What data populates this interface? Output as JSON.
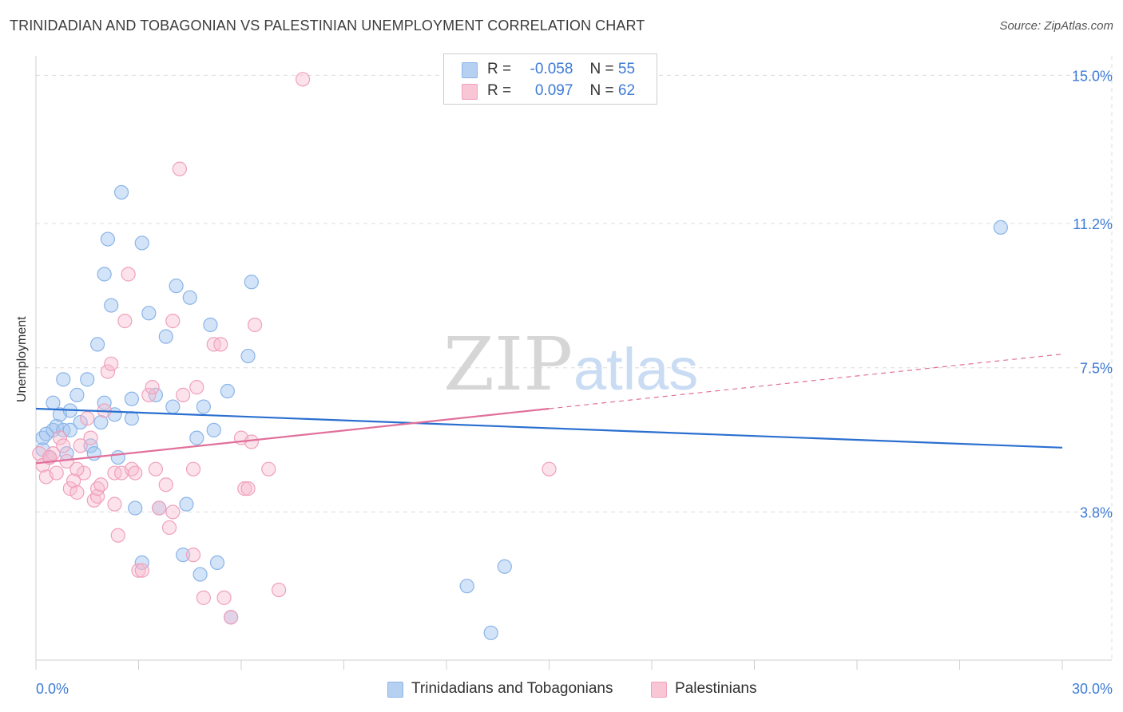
{
  "title": "TRINIDADIAN AND TOBAGONIAN VS PALESTINIAN UNEMPLOYMENT CORRELATION CHART",
  "source": "Source: ZipAtlas.com",
  "watermark": {
    "zip": "ZIP",
    "atlas": "atlas"
  },
  "legend": {
    "r_label": "R =",
    "n_label": "N =",
    "series": [
      {
        "r": "-0.058",
        "n": "55"
      },
      {
        "r": "0.097",
        "n": "62"
      }
    ]
  },
  "chart_data": {
    "type": "scatter",
    "title": "TRINIDADIAN AND TOBAGONIAN VS PALESTINIAN UNEMPLOYMENT CORRELATION CHART",
    "ylabel": "Unemployment",
    "xlabel": "",
    "xlim": [
      0,
      30
    ],
    "ylim": [
      0,
      15.5
    ],
    "x_tick_labels": [
      {
        "value": 0,
        "label": "0.0%"
      },
      {
        "value": 30,
        "label": "30.0%"
      }
    ],
    "y_tick_labels": [
      {
        "value": 3.8,
        "label": "3.8%"
      },
      {
        "value": 7.5,
        "label": "7.5%"
      },
      {
        "value": 11.2,
        "label": "11.2%"
      },
      {
        "value": 15.0,
        "label": "15.0%"
      }
    ],
    "x_minor_ticks": [
      0,
      3,
      6,
      9,
      12,
      15,
      18,
      21,
      24,
      27,
      30
    ],
    "series": [
      {
        "name": "Trinidadians and Tobagonians",
        "color": "#8ab4e8",
        "fill": "rgba(160,196,240,0.45)",
        "line_color": "#2a6fd0",
        "trend": {
          "x0": 0,
          "y0": 6.45,
          "x1": 30,
          "y1": 5.45,
          "dashed_from": null
        },
        "points": [
          [
            0.2,
            5.4
          ],
          [
            0.2,
            5.7
          ],
          [
            0.3,
            5.8
          ],
          [
            0.4,
            5.2
          ],
          [
            0.5,
            5.9
          ],
          [
            0.5,
            6.6
          ],
          [
            0.6,
            6.0
          ],
          [
            0.7,
            6.3
          ],
          [
            0.8,
            5.9
          ],
          [
            0.8,
            7.2
          ],
          [
            0.9,
            5.3
          ],
          [
            1.0,
            6.4
          ],
          [
            1.0,
            5.9
          ],
          [
            1.2,
            6.8
          ],
          [
            1.3,
            6.1
          ],
          [
            1.5,
            7.2
          ],
          [
            1.6,
            5.5
          ],
          [
            1.7,
            5.3
          ],
          [
            1.8,
            8.1
          ],
          [
            1.9,
            6.1
          ],
          [
            2.0,
            6.6
          ],
          [
            2.0,
            9.9
          ],
          [
            2.1,
            10.8
          ],
          [
            2.2,
            9.1
          ],
          [
            2.3,
            6.3
          ],
          [
            2.4,
            5.2
          ],
          [
            2.5,
            12.0
          ],
          [
            2.8,
            6.7
          ],
          [
            2.8,
            6.2
          ],
          [
            2.9,
            3.9
          ],
          [
            3.1,
            2.5
          ],
          [
            3.1,
            10.7
          ],
          [
            3.3,
            8.9
          ],
          [
            3.5,
            6.8
          ],
          [
            3.6,
            3.9
          ],
          [
            3.8,
            8.3
          ],
          [
            4.0,
            6.5
          ],
          [
            4.1,
            9.6
          ],
          [
            4.3,
            2.7
          ],
          [
            4.4,
            4.0
          ],
          [
            4.5,
            9.3
          ],
          [
            4.7,
            5.7
          ],
          [
            4.8,
            2.2
          ],
          [
            4.9,
            6.5
          ],
          [
            5.1,
            8.6
          ],
          [
            5.2,
            5.9
          ],
          [
            5.3,
            2.5
          ],
          [
            5.6,
            6.9
          ],
          [
            5.7,
            1.1
          ],
          [
            6.2,
            7.8
          ],
          [
            6.3,
            9.7
          ],
          [
            12.6,
            1.9
          ],
          [
            13.3,
            0.7
          ],
          [
            13.7,
            2.4
          ],
          [
            28.2,
            11.1
          ]
        ]
      },
      {
        "name": "Palestinians",
        "color": "#f0a0bc",
        "fill": "rgba(248,184,206,0.40)",
        "line_color": "#e0709a",
        "trend": {
          "x0": 0,
          "y0": 5.05,
          "x1": 30,
          "y1": 7.85,
          "dashed_from": 15
        },
        "points": [
          [
            0.1,
            5.3
          ],
          [
            0.2,
            5.0
          ],
          [
            0.3,
            4.7
          ],
          [
            0.4,
            5.2
          ],
          [
            0.5,
            5.3
          ],
          [
            0.6,
            4.8
          ],
          [
            0.7,
            5.7
          ],
          [
            0.8,
            5.5
          ],
          [
            0.9,
            5.1
          ],
          [
            1.0,
            4.4
          ],
          [
            1.1,
            4.6
          ],
          [
            1.2,
            4.3
          ],
          [
            1.3,
            5.5
          ],
          [
            1.4,
            4.8
          ],
          [
            1.5,
            6.2
          ],
          [
            1.6,
            5.7
          ],
          [
            1.7,
            4.1
          ],
          [
            1.8,
            4.2
          ],
          [
            1.8,
            4.4
          ],
          [
            1.9,
            4.5
          ],
          [
            2.0,
            6.4
          ],
          [
            2.1,
            7.4
          ],
          [
            2.2,
            7.6
          ],
          [
            2.3,
            4.0
          ],
          [
            2.3,
            4.8
          ],
          [
            2.4,
            3.2
          ],
          [
            2.5,
            4.8
          ],
          [
            2.6,
            8.7
          ],
          [
            2.7,
            9.9
          ],
          [
            2.8,
            4.9
          ],
          [
            2.9,
            4.8
          ],
          [
            3.0,
            2.3
          ],
          [
            3.1,
            2.3
          ],
          [
            3.3,
            6.8
          ],
          [
            3.4,
            7.0
          ],
          [
            3.5,
            4.9
          ],
          [
            3.6,
            3.9
          ],
          [
            3.8,
            4.5
          ],
          [
            3.9,
            3.4
          ],
          [
            4.0,
            3.8
          ],
          [
            4.0,
            8.7
          ],
          [
            4.2,
            12.6
          ],
          [
            4.3,
            6.8
          ],
          [
            4.6,
            2.7
          ],
          [
            4.6,
            4.9
          ],
          [
            4.7,
            7.0
          ],
          [
            4.9,
            1.6
          ],
          [
            5.2,
            8.1
          ],
          [
            5.4,
            8.1
          ],
          [
            5.5,
            1.6
          ],
          [
            5.7,
            1.1
          ],
          [
            6.0,
            5.7
          ],
          [
            6.1,
            4.4
          ],
          [
            6.2,
            4.4
          ],
          [
            6.3,
            5.6
          ],
          [
            6.4,
            8.6
          ],
          [
            6.8,
            4.9
          ],
          [
            7.1,
            1.8
          ],
          [
            7.8,
            14.9
          ],
          [
            15.0,
            4.9
          ],
          [
            1.2,
            4.9
          ],
          [
            0.4,
            5.2
          ]
        ]
      }
    ],
    "legend_position": "bottom"
  }
}
